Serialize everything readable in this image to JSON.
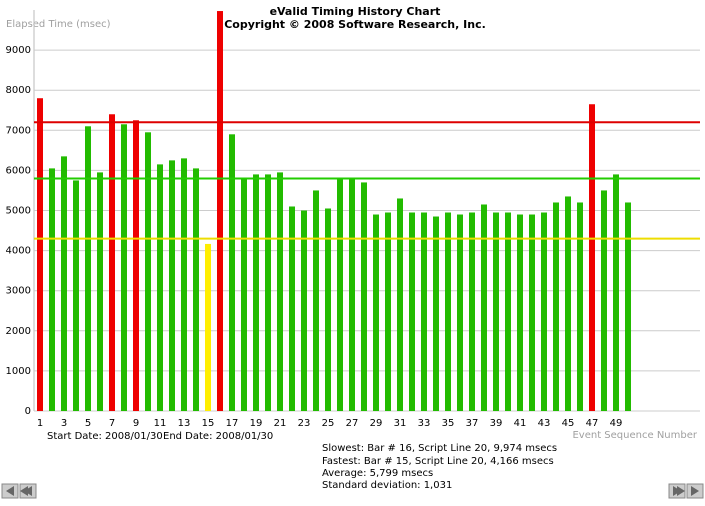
{
  "chart_data": {
    "type": "bar",
    "title": "eValid Timing History Chart",
    "subtitle": "Copyright © 2008 Software Research, Inc.",
    "y_label": "Elapsed Time (msec)",
    "x_label": "Event Sequence Number",
    "start_date": "Start Date: 2008/01/30",
    "end_date": "End Date: 2008/01/30",
    "stats": [
      "Slowest: Bar # 16, Script Line 20, 9,974 msecs",
      "Fastest: Bar # 15, Script Line 20, 4,166 msecs",
      "Average: 5,799 msecs",
      "Standard deviation: 1,031"
    ],
    "categories": [
      "1",
      null,
      "3",
      null,
      "5",
      null,
      "7",
      null,
      "9",
      null,
      "11",
      null,
      "13",
      null,
      "15",
      null,
      "17",
      null,
      "19",
      null,
      "21",
      null,
      "23",
      null,
      "25",
      null,
      "27",
      null,
      "29",
      null,
      "31",
      null,
      "33",
      null,
      "35",
      null,
      "37",
      null,
      "39",
      null,
      "41",
      null,
      "43",
      null,
      "45",
      null,
      "47",
      null,
      "49",
      null
    ],
    "values": [
      7800,
      6050,
      6350,
      5750,
      7100,
      5950,
      7400,
      7150,
      7250,
      6950,
      6150,
      6250,
      6300,
      6050,
      4166,
      9974,
      6900,
      5800,
      5900,
      5900,
      5950,
      5100,
      5000,
      5500,
      5050,
      5800,
      5800,
      5700,
      4900,
      4950,
      5300,
      4950,
      4950,
      4850,
      4950,
      4900,
      4950,
      5150,
      4950,
      4950,
      4900,
      4900,
      4950,
      5200,
      5350,
      5200,
      7650,
      5500,
      5900,
      5200
    ],
    "colors": [
      "#ee0000",
      "#22bb00",
      "#22bb00",
      "#22bb00",
      "#22bb00",
      "#22bb00",
      "#ee0000",
      "#22bb00",
      "#ee0000",
      "#22bb00",
      "#22bb00",
      "#22bb00",
      "#22bb00",
      "#22bb00",
      "#ffee00",
      "#ee0000",
      "#22bb00",
      "#22bb00",
      "#22bb00",
      "#22bb00",
      "#22bb00",
      "#22bb00",
      "#22bb00",
      "#22bb00",
      "#22bb00",
      "#22bb00",
      "#22bb00",
      "#22bb00",
      "#22bb00",
      "#22bb00",
      "#22bb00",
      "#22bb00",
      "#22bb00",
      "#22bb00",
      "#22bb00",
      "#22bb00",
      "#22bb00",
      "#22bb00",
      "#22bb00",
      "#22bb00",
      "#22bb00",
      "#22bb00",
      "#22bb00",
      "#22bb00",
      "#22bb00",
      "#22bb00",
      "#ee0000",
      "#22bb00",
      "#22bb00",
      "#22bb00"
    ],
    "reference_lines": [
      {
        "value": 7200,
        "color": "#dd0000"
      },
      {
        "value": 5799,
        "color": "#22cc00"
      },
      {
        "value": 4300,
        "color": "#eedd00"
      }
    ],
    "ylim": [
      0,
      10000
    ],
    "yticks": [
      0,
      1000,
      2000,
      3000,
      4000,
      5000,
      6000,
      7000,
      8000,
      9000
    ],
    "grid": true
  }
}
